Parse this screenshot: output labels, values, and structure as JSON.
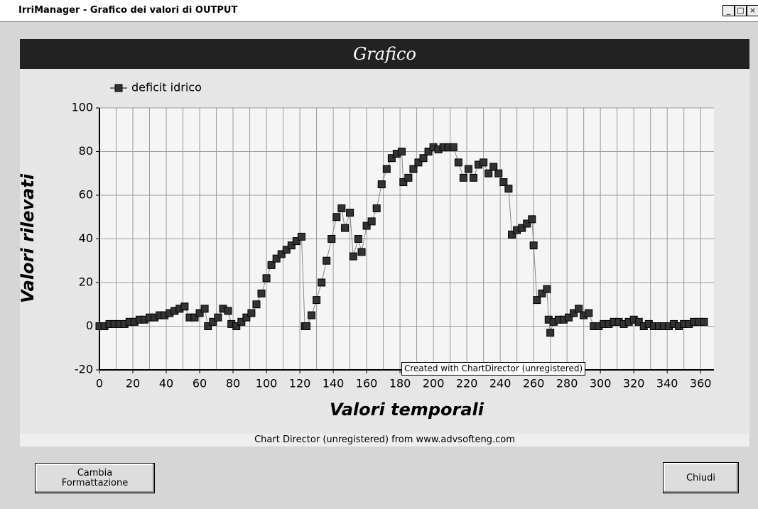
{
  "window": {
    "title": "IrriManager - Grafico dei valori di OUTPUT"
  },
  "panel_title": "Grafico",
  "chart_data": {
    "type": "line",
    "x_label": "Valori temporali",
    "y_label": "Valori rilevati",
    "x": [
      0,
      3,
      6,
      9,
      12,
      15,
      18,
      21,
      24,
      27,
      30,
      33,
      36,
      39,
      42,
      45,
      48,
      51,
      54,
      57,
      60,
      63,
      65,
      68,
      71,
      74,
      77,
      79,
      82,
      85,
      88,
      91,
      94,
      97,
      100,
      103,
      106,
      109,
      112,
      115,
      118,
      121,
      123,
      124,
      127,
      130,
      133,
      136,
      139,
      142,
      145,
      147,
      150,
      152,
      155,
      157,
      160,
      163,
      166,
      169,
      172,
      175,
      178,
      181,
      182,
      185,
      188,
      191,
      194,
      197,
      200,
      203,
      206,
      209,
      212,
      215,
      218,
      221,
      224,
      227,
      230,
      233,
      236,
      239,
      242,
      245,
      247,
      250,
      253,
      256,
      259,
      260,
      262,
      265,
      268,
      269,
      270,
      272,
      275,
      278,
      281,
      284,
      287,
      290,
      293,
      296,
      299,
      302,
      305,
      308,
      311,
      314,
      317,
      320,
      323,
      326,
      329,
      332,
      335,
      338,
      341,
      344,
      347,
      350,
      353,
      356,
      359,
      362
    ],
    "series": [
      {
        "name": "deficit idrico",
        "color": "#333333",
        "values": [
          0,
          0,
          1,
          1,
          1,
          1,
          2,
          2,
          3,
          3,
          4,
          4,
          5,
          5,
          6,
          7,
          8,
          9,
          4,
          4,
          6,
          8,
          0,
          2,
          4,
          8,
          7,
          1,
          0,
          2,
          4,
          6,
          10,
          15,
          22,
          28,
          31,
          33,
          35,
          37,
          39,
          41,
          0,
          0,
          5,
          12,
          20,
          30,
          40,
          50,
          54,
          45,
          52,
          32,
          40,
          34,
          46,
          48,
          54,
          65,
          72,
          77,
          79,
          80,
          66,
          68,
          72,
          75,
          77,
          80,
          82,
          81,
          82,
          82,
          82,
          75,
          68,
          72,
          68,
          74,
          75,
          70,
          73,
          70,
          66,
          63,
          42,
          44,
          45,
          47,
          49,
          37,
          12,
          15,
          17,
          3,
          -3,
          2,
          3,
          3,
          4,
          6,
          8,
          5,
          6,
          0,
          0,
          1,
          1,
          2,
          2,
          1,
          2,
          3,
          2,
          0,
          1,
          0,
          0,
          0,
          0,
          1,
          0,
          1,
          1,
          2,
          2,
          2
        ]
      }
    ],
    "xlim": [
      0,
      368
    ],
    "ylim": [
      -20,
      100
    ],
    "xticks": [
      0,
      20,
      40,
      60,
      80,
      100,
      120,
      140,
      160,
      180,
      200,
      220,
      240,
      260,
      280,
      300,
      320,
      340,
      360
    ],
    "xgrid": [
      0,
      10,
      20,
      30,
      40,
      50,
      60,
      70,
      80,
      90,
      100,
      110,
      120,
      130,
      140,
      150,
      160,
      170,
      180,
      190,
      200,
      210,
      220,
      230,
      240,
      250,
      260,
      270,
      280,
      290,
      300,
      310,
      320,
      330,
      340,
      350,
      360
    ],
    "yticks": [
      -20,
      0,
      20,
      40,
      60,
      80,
      100
    ],
    "grid": true,
    "legend": "top-left"
  },
  "tooltip": "Created with ChartDirector (unregistered)",
  "footer": "Chart Director (unregistered) from www.advsofteng.com",
  "buttons": [
    "Cambia Formattazione",
    "Chiudi"
  ]
}
